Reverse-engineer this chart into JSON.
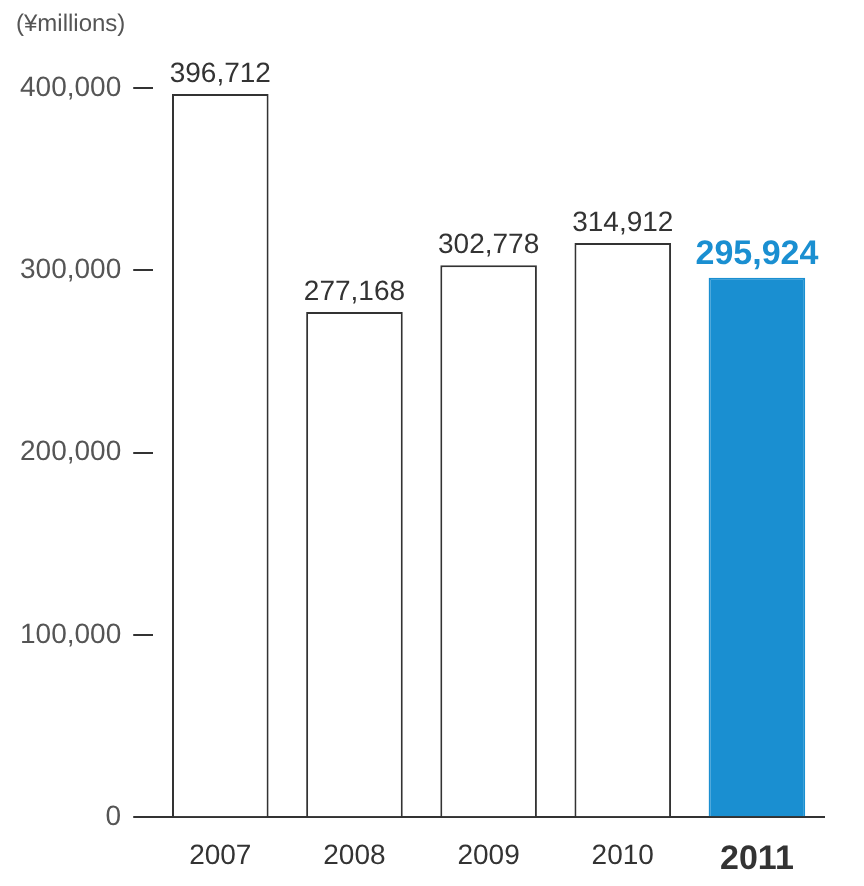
{
  "chart_data": {
    "type": "bar",
    "ylabel": "(¥millions)",
    "categories": [
      "2007",
      "2008",
      "2009",
      "2010",
      "2011"
    ],
    "values": [
      396712,
      277168,
      302778,
      314912,
      295924
    ],
    "colors": [
      "#ffffff",
      "#ffffff",
      "#ffffff",
      "#ffffff",
      "#1a8fd1"
    ],
    "value_labels": [
      "396,712",
      "277,168",
      "302,778",
      "314,912",
      "295,924"
    ],
    "ylim": [
      0,
      400000
    ],
    "yticks": [
      0,
      {
        "value": 100000,
        "label": "100,000"
      },
      {
        "value": 200000,
        "label": "200,000"
      },
      {
        "value": 300000,
        "label": "300,000"
      },
      {
        "value": 400000,
        "label": "400,000"
      }
    ],
    "grid": false,
    "legend": false
  }
}
